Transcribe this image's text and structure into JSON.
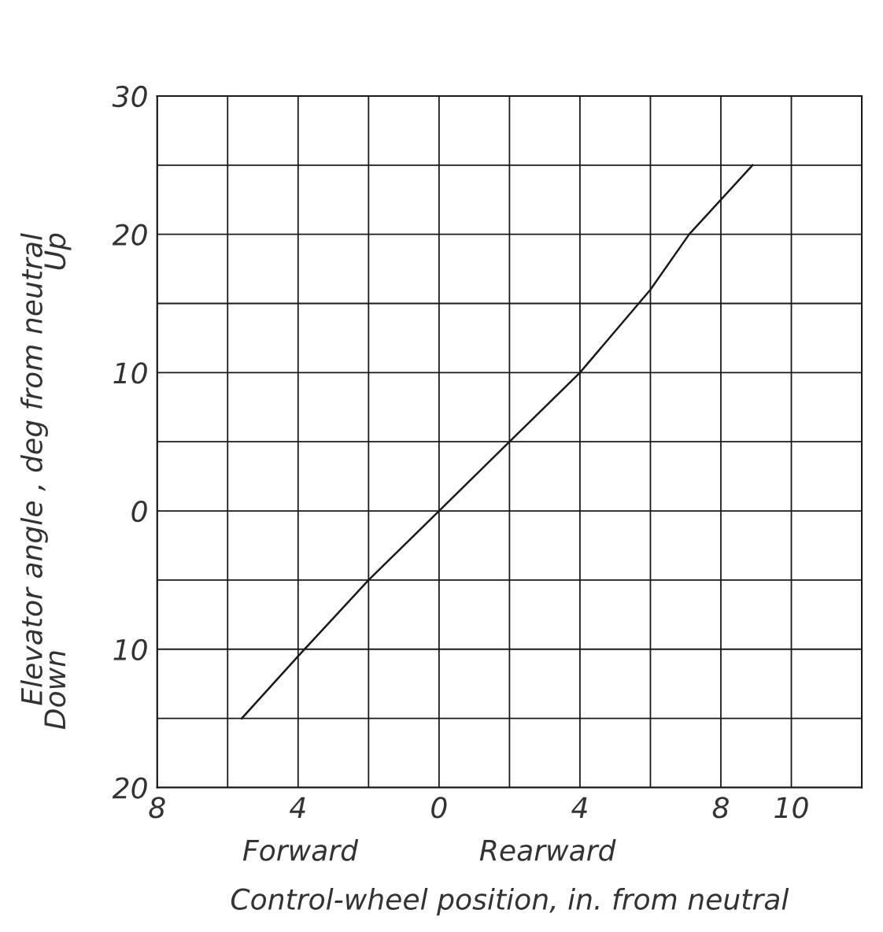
{
  "chart_data": {
    "type": "line",
    "xlabel": "Control-wheel position, in. from neutral",
    "ylabel": "Elevator angle , deg from neutral",
    "annotations": [
      "Forward",
      "Rearward",
      "Down",
      "Up"
    ],
    "x": [
      -5.6,
      -4,
      -2,
      0,
      2,
      4,
      6,
      7.1,
      8.9
    ],
    "series": [
      {
        "color": "#1a1a1a",
        "values": [
          -15,
          -10.5,
          -5,
          0,
          5,
          10,
          16,
          20,
          25
        ]
      }
    ],
    "xlim": [
      -8,
      12
    ],
    "xticks": [
      {
        "value": -8,
        "label": "8"
      },
      {
        "value": -6,
        "label": null
      },
      {
        "value": -4,
        "label": "4"
      },
      {
        "value": -2,
        "label": null
      },
      0,
      {
        "value": 2,
        "label": null
      },
      4,
      {
        "value": 6,
        "label": null
      },
      8,
      10,
      {
        "value": 12,
        "label": null
      }
    ],
    "ylim": [
      -20,
      30
    ],
    "yticks": [
      {
        "value": -20,
        "label": "20"
      },
      {
        "value": -15,
        "label": null
      },
      {
        "value": -10,
        "label": "10"
      },
      {
        "value": -5,
        "label": null
      },
      0,
      {
        "value": 5,
        "label": null
      },
      10,
      {
        "value": 15,
        "label": null
      },
      20,
      {
        "value": 25,
        "label": null
      },
      30
    ],
    "grid": true,
    "marker": "none",
    "line_style": "solid"
  }
}
